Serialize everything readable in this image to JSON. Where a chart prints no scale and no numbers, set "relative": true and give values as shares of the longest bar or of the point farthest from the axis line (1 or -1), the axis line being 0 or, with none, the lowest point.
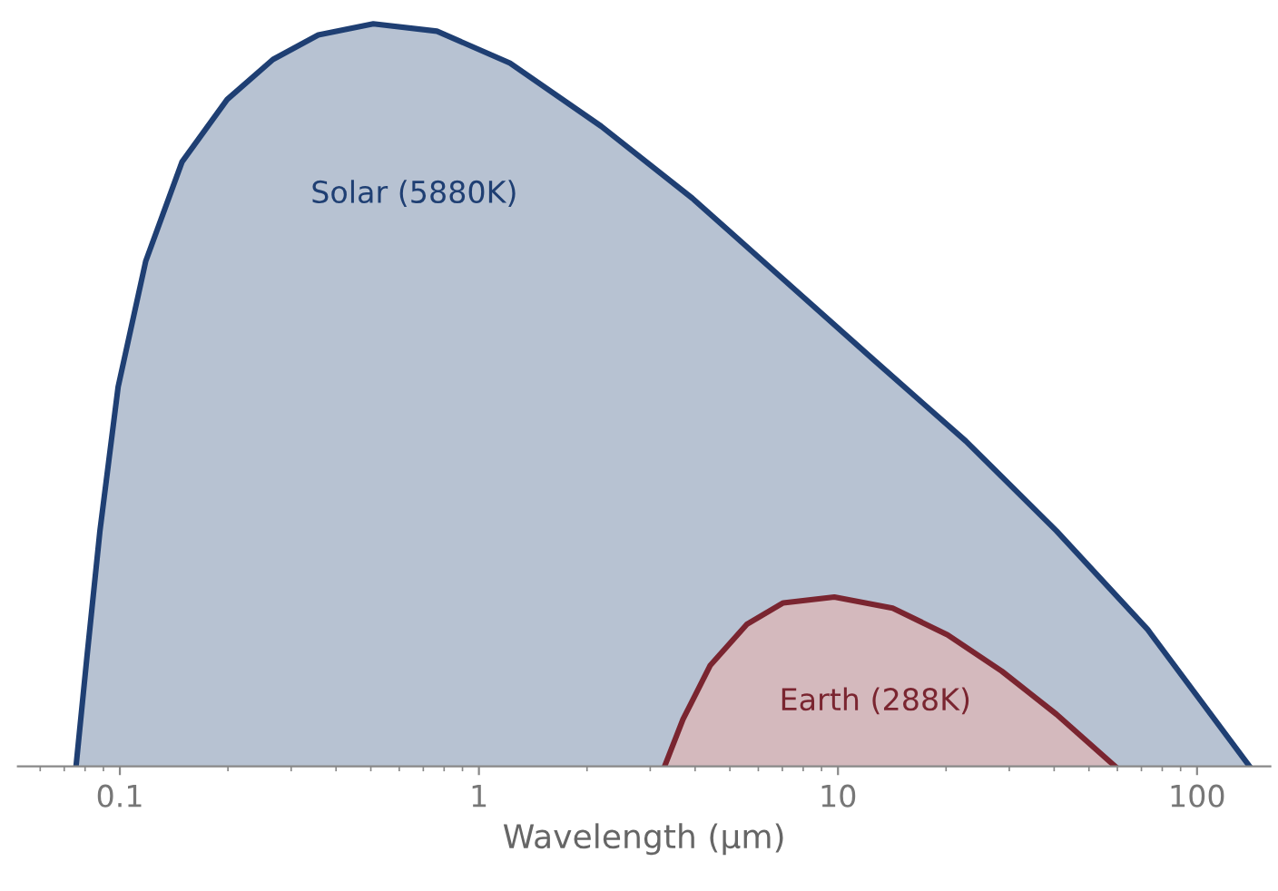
{
  "chart_data": {
    "type": "area",
    "xlabel": "Wavelength (µm)",
    "log": "x",
    "relative": true,
    "xlim": [
      0.052,
      160
    ],
    "xticks": [
      0.1,
      1,
      10,
      100
    ],
    "grid": false,
    "legend": false,
    "series": [
      {
        "name": "Solar (5880K)",
        "color": "#1f3f73",
        "x": [
          0.0755,
          0.081,
          0.088,
          0.0989,
          0.118,
          0.149,
          0.199,
          0.267,
          0.357,
          0.508,
          0.764,
          1.22,
          2.19,
          3.93,
          7.04,
          12.6,
          22.7,
          40.6,
          72.9,
          140
        ],
        "values": [
          0,
          0.148,
          0.317,
          0.511,
          0.68,
          0.814,
          0.898,
          0.952,
          0.985,
          1,
          0.99,
          0.947,
          0.862,
          0.765,
          0.656,
          0.547,
          0.438,
          0.317,
          0.184,
          0
        ]
      },
      {
        "name": "Earth (288K)",
        "color": "#7a2530",
        "x": [
          3.29,
          3.7,
          4.41,
          5.57,
          7.04,
          9.77,
          14.2,
          20.2,
          28.6,
          40.6,
          59.1
        ],
        "values": [
          0,
          0.063,
          0.136,
          0.191,
          0.22,
          0.228,
          0.213,
          0.177,
          0.128,
          0.07,
          0
        ]
      }
    ]
  }
}
